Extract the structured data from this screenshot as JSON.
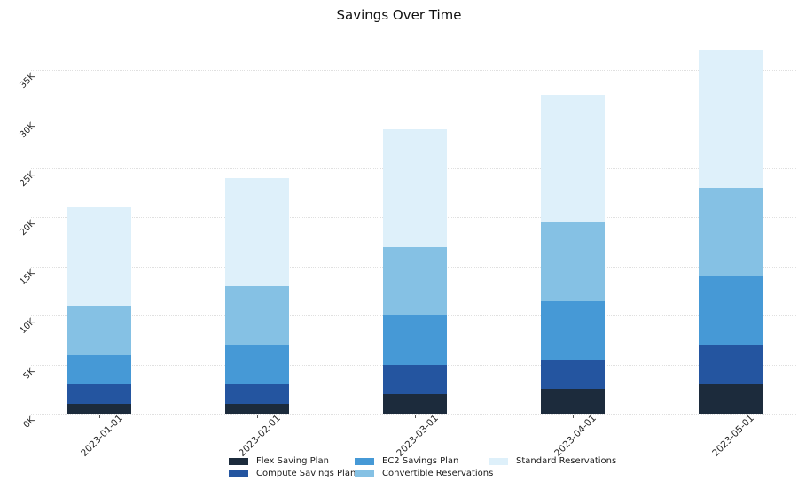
{
  "title": "Savings Over Time",
  "colors": {
    "background": "#ffffff",
    "grid": "#e0e0e0",
    "tick_text": "#262626",
    "title_text": "#111111"
  },
  "chart_data": {
    "type": "bar",
    "stacked": true,
    "title": "Savings Over Time",
    "xlabel": "",
    "ylabel": "",
    "grid": "horizontal-dotted",
    "legend_position": "bottom-center",
    "categories": [
      "2023-01-01",
      "2023-02-01",
      "2023-03-01",
      "2023-04-01",
      "2023-05-01"
    ],
    "series": [
      {
        "name": "Flex Saving Plan",
        "color": "#1c2b3c",
        "values": [
          1000,
          1000,
          2000,
          2500,
          3000
        ]
      },
      {
        "name": "Compute Savings Plan",
        "color": "#2455a0",
        "values": [
          2000,
          2000,
          3000,
          3000,
          4000
        ]
      },
      {
        "name": "EC2 Savings Plan",
        "color": "#4699d6",
        "values": [
          3000,
          4000,
          5000,
          6000,
          7000
        ]
      },
      {
        "name": "Convertible Reservations",
        "color": "#85c1e4",
        "values": [
          5000,
          6000,
          7000,
          8000,
          9000
        ]
      },
      {
        "name": "Standard Reservations",
        "color": "#def0fa",
        "values": [
          10000,
          11000,
          12000,
          13000,
          14000
        ]
      }
    ],
    "stack_order_bottom_to_top": [
      "Flex Saving Plan",
      "Compute Savings Plan",
      "EC2 Savings Plan",
      "Convertible Reservations",
      "Standard Reservations"
    ],
    "stack_totals": [
      21000,
      24000,
      29000,
      32500,
      37000
    ],
    "y_ticks": [
      {
        "label": "0K",
        "value": 0
      },
      {
        "label": "5K",
        "value": 5000
      },
      {
        "label": "10K",
        "value": 10000
      },
      {
        "label": "15K",
        "value": 15000
      },
      {
        "label": "20K",
        "value": 20000
      },
      {
        "label": "25K",
        "value": 25000
      },
      {
        "label": "30K",
        "value": 30000
      },
      {
        "label": "35K",
        "value": 35000
      }
    ],
    "ylim": [
      0,
      38000
    ]
  }
}
